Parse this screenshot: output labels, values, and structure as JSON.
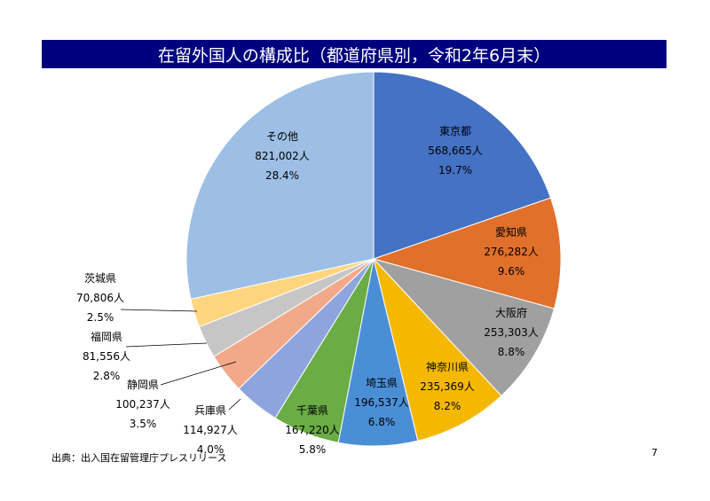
{
  "title": "在留外国人の構成比（都道府県別，令和2年6月末）",
  "source": "出典：出入国在留管理庁プレスリリース",
  "page_number": "7",
  "chart_data": {
    "type": "pie",
    "title": "在留外国人の構成比（都道府県別，令和2年6月末）",
    "unit": "人",
    "slices": [
      {
        "name": "東京都",
        "value": 568665,
        "value_label": "568,665人",
        "percent_label": "19.7%",
        "color": "#4472c4"
      },
      {
        "name": "愛知県",
        "value": 276282,
        "value_label": "276,282人",
        "percent_label": "9.6%",
        "color": "#e0702a"
      },
      {
        "name": "大阪府",
        "value": 253303,
        "value_label": "253,303人",
        "percent_label": "8.8%",
        "color": "#a0a0a0"
      },
      {
        "name": "神奈川県",
        "value": 235369,
        "value_label": "235,369人",
        "percent_label": "8.2%",
        "color": "#f5b800"
      },
      {
        "name": "埼玉県",
        "value": 196537,
        "value_label": "196,537人",
        "percent_label": "6.8%",
        "color": "#4a8fd6"
      },
      {
        "name": "千葉県",
        "value": 167220,
        "value_label": "167,220人",
        "percent_label": "5.8%",
        "color": "#6aac46"
      },
      {
        "name": "兵庫県",
        "value": 114927,
        "value_label": "114,927人",
        "percent_label": "4.0%",
        "color": "#8ea4dc"
      },
      {
        "name": "静岡県",
        "value": 100237,
        "value_label": "100,237人",
        "percent_label": "3.5%",
        "color": "#f2a98a"
      },
      {
        "name": "福岡県",
        "value": 81556,
        "value_label": "81,556人",
        "percent_label": "2.8%",
        "color": "#c6c6c6"
      },
      {
        "name": "茨城県",
        "value": 70806,
        "value_label": "70,806人",
        "percent_label": "2.5%",
        "color": "#ffd580"
      },
      {
        "name": "その他",
        "value": 821002,
        "value_label": "821,002人",
        "percent_label": "28.4%",
        "color": "#9dbfe6"
      }
    ]
  }
}
